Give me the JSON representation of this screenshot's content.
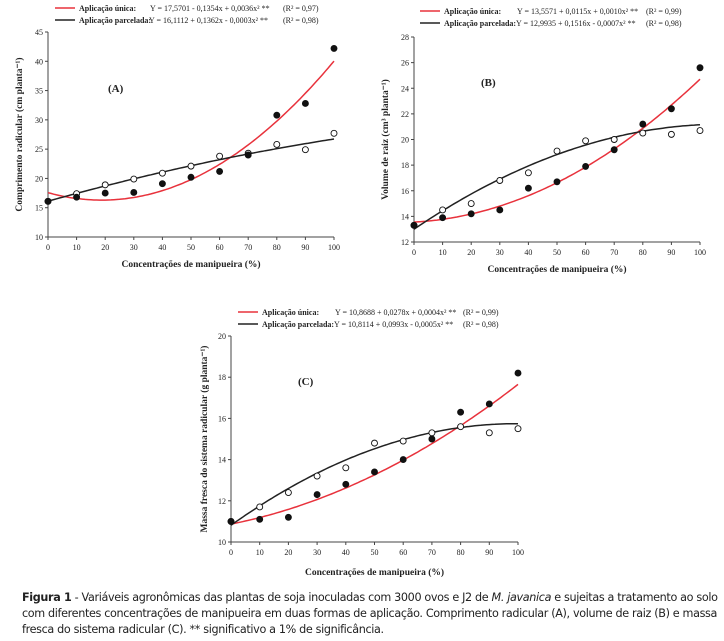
{
  "colors": {
    "single": "#e8323c",
    "split": "#222222"
  },
  "chart_data": [
    {
      "type": "scatter",
      "panel_label": "(A)",
      "xlabel": "Concentrações de manipueira (%)",
      "ylabel": "Comprimento radicular (cm planta⁻¹)",
      "xlim": [
        0,
        100
      ],
      "ylim": [
        10,
        45
      ],
      "xticks": [
        0,
        10,
        20,
        30,
        40,
        50,
        60,
        70,
        80,
        90,
        100
      ],
      "yticks": [
        10,
        15,
        20,
        25,
        30,
        35,
        40,
        45
      ],
      "series": [
        {
          "name": "Aplicação única:",
          "equation": "Y = 17,5701 - 0,1354x + 0,0036x² **",
          "r2": "(R² = 0,97)",
          "coef": [
            17.5701,
            -0.1354,
            0.0036
          ],
          "marker": "filled",
          "x": [
            0,
            10,
            20,
            30,
            40,
            50,
            60,
            70,
            80,
            90,
            100
          ],
          "y": [
            16.1,
            16.8,
            17.5,
            17.6,
            19.1,
            20.2,
            21.2,
            24.0,
            30.8,
            32.8,
            42.2
          ]
        },
        {
          "name": "Aplicação parcelada:",
          "equation": "Y = 16,1112 + 0,1362x - 0,0003x² **",
          "r2": "(R² = 0,98)",
          "coef": [
            16.1112,
            0.1362,
            -0.0003
          ],
          "marker": "open",
          "x": [
            0,
            10,
            20,
            30,
            40,
            50,
            60,
            70,
            80,
            90,
            100
          ],
          "y": [
            16.1,
            17.4,
            18.9,
            19.9,
            20.9,
            22.1,
            23.8,
            24.3,
            25.8,
            24.9,
            27.7
          ]
        }
      ]
    },
    {
      "type": "scatter",
      "panel_label": "(B)",
      "xlabel": "Concentrações de manipueira (%)",
      "ylabel": "Volume de raiz (cm³ planta⁻¹)",
      "xlim": [
        0,
        100
      ],
      "ylim": [
        12,
        28
      ],
      "xticks": [
        0,
        10,
        20,
        30,
        40,
        50,
        60,
        70,
        80,
        90,
        100
      ],
      "yticks": [
        12,
        14,
        16,
        18,
        20,
        22,
        24,
        26,
        28
      ],
      "series": [
        {
          "name": "Aplicação única:",
          "equation": "Y = 13,5571 + 0,0115x + 0,0010x² **",
          "r2": "(R² = 0,99)",
          "coef": [
            13.5571,
            0.0115,
            0.001
          ],
          "marker": "filled",
          "x": [
            0,
            10,
            20,
            30,
            40,
            50,
            60,
            70,
            80,
            90,
            100
          ],
          "y": [
            13.3,
            13.9,
            14.2,
            14.5,
            16.2,
            16.7,
            17.9,
            19.2,
            21.2,
            22.4,
            25.6
          ]
        },
        {
          "name": "Aplicação parcelada:",
          "equation": "Y = 12,9935 + 0,1516x - 0,0007x² **",
          "r2": "(R² = 0,98)",
          "coef": [
            12.9935,
            0.1516,
            -0.0007
          ],
          "marker": "open",
          "x": [
            0,
            10,
            20,
            30,
            40,
            50,
            60,
            70,
            80,
            90,
            100
          ],
          "y": [
            13.3,
            14.5,
            15.0,
            16.8,
            17.4,
            19.1,
            19.9,
            20.0,
            20.5,
            20.4,
            20.7
          ]
        }
      ]
    },
    {
      "type": "scatter",
      "panel_label": "(C)",
      "xlabel": "Concentrações de manipueira (%)",
      "ylabel": "Massa fresca do sistema radicular (g planta⁻¹)",
      "xlim": [
        0,
        100
      ],
      "ylim": [
        10,
        20
      ],
      "xticks": [
        0,
        10,
        20,
        30,
        40,
        50,
        60,
        70,
        80,
        90,
        100
      ],
      "yticks": [
        10,
        12,
        14,
        16,
        18,
        20
      ],
      "series": [
        {
          "name": "Aplicação única:",
          "equation": "Y = 10,8688 + 0,0278x + 0,0004x² **",
          "r2": "(R² = 0,99)",
          "coef": [
            10.8688,
            0.0278,
            0.0004
          ],
          "marker": "filled",
          "x": [
            0,
            10,
            20,
            30,
            40,
            50,
            60,
            70,
            80,
            90,
            100
          ],
          "y": [
            11.0,
            11.1,
            11.2,
            12.3,
            12.8,
            13.4,
            14.0,
            15.0,
            16.3,
            16.7,
            18.2
          ]
        },
        {
          "name": "Aplicação parcelada:",
          "equation": "Y = 10,8114 + 0,0993x - 0,0005x² **",
          "r2": "(R² = 0,98)",
          "coef": [
            10.8114,
            0.0993,
            -0.0005
          ],
          "marker": "open",
          "x": [
            0,
            10,
            20,
            30,
            40,
            50,
            60,
            70,
            80,
            90,
            100
          ],
          "y": [
            11.0,
            11.7,
            12.4,
            13.2,
            13.6,
            14.8,
            14.9,
            15.3,
            15.6,
            15.3,
            15.5
          ]
        }
      ]
    }
  ],
  "caption": {
    "label": "Figura 1",
    "text1": " - Variáveis agronômicas das plantas de soja inoculadas com 3000 ovos e J2 de ",
    "species": "M. javanica",
    "text2": " e sujeitas a tratamento ao solo com diferentes concentrações de manipueira em duas formas de aplicação. Comprimento radicular (A), volume de raiz (B) e massa fresca do sistema radicular (C). ** significativo a 1% de significância."
  }
}
